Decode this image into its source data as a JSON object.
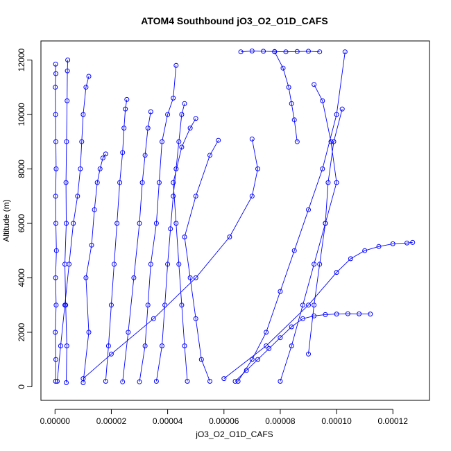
{
  "chart_data": {
    "type": "line",
    "title": "ATOM4 Southbound jO3_O2_O1D_CAFS",
    "xlabel": "jO3_O2_O1D_CAFS",
    "ylabel": "Altitude (m)",
    "xlim": [
      -5e-06,
      0.000133
    ],
    "ylim": [
      -500,
      12700
    ],
    "x_ticks": [
      0,
      2e-05,
      4e-05,
      6e-05,
      8e-05,
      0.0001,
      0.00012
    ],
    "x_tick_labels": [
      "0.00000",
      "0.00002",
      "0.00004",
      "0.00006",
      "0.00008",
      "0.00010",
      "0.00012"
    ],
    "y_ticks": [
      0,
      2000,
      4000,
      6000,
      8000,
      10000,
      12000
    ],
    "y_tick_labels": [
      "0",
      "2000",
      "4000",
      "6000",
      "8000",
      "10000",
      "12000"
    ],
    "grid": false,
    "legend": "none",
    "color": "#0000ff",
    "marker": "open-circle",
    "series": [
      {
        "x": [
          2e-07,
          3e-07,
          1e-07,
          4e-07,
          2e-07,
          5e-07,
          3e-07,
          2e-07,
          4e-07,
          3e-07,
          2e-07,
          1e-07,
          3e-07,
          2e-07
        ],
        "y": [
          200,
          1000,
          2000,
          3000,
          4000,
          5000,
          6000,
          7000,
          8000,
          9000,
          10000,
          11000,
          11500,
          11850
        ]
      },
      {
        "x": [
          4e-06,
          4.2e-06,
          3.8e-06,
          3.5e-06,
          4e-06,
          3.9e-06,
          4.1e-06,
          4.3e-06,
          4.4e-06,
          4.5e-06
        ],
        "y": [
          150,
          1500,
          3000,
          4500,
          6000,
          7500,
          9000,
          10500,
          11600,
          12000
        ]
      },
      {
        "x": [
          8e-07,
          2e-06,
          3.5e-06,
          5e-06,
          6.5e-06,
          8e-06,
          9e-06,
          9.5e-06,
          1e-05,
          1.1e-05,
          1.2e-05
        ],
        "y": [
          200,
          1500,
          3000,
          4500,
          6000,
          7000,
          8000,
          9000,
          10000,
          11000,
          11400
        ]
      },
      {
        "x": [
          1e-05,
          1.2e-05,
          1.1e-05,
          1.3e-05,
          1.4e-05,
          1.5e-05,
          1.6e-05,
          1.7e-05,
          1.8e-05
        ],
        "y": [
          150,
          2000,
          4000,
          5200,
          6500,
          7500,
          8000,
          8400,
          8550
        ]
      },
      {
        "x": [
          1.8e-05,
          1.9e-05,
          2e-05,
          2.1e-05,
          2.2e-05,
          2.3e-05,
          2.4e-05,
          2.45e-05,
          2.5e-05,
          2.55e-05
        ],
        "y": [
          200,
          1500,
          3000,
          4500,
          6000,
          7500,
          8600,
          9500,
          10200,
          10550
        ]
      },
      {
        "x": [
          2.4e-05,
          2.6e-05,
          2.8e-05,
          3e-05,
          3.1e-05,
          3.2e-05,
          3.3e-05,
          3.4e-05
        ],
        "y": [
          180,
          2000,
          4000,
          6000,
          7500,
          8500,
          9500,
          10100
        ]
      },
      {
        "x": [
          3e-05,
          3.2e-05,
          3.3e-05,
          3.4e-05,
          3.6e-05,
          3.7e-05,
          3.8e-05,
          4e-05,
          4.2e-05,
          4.3e-05
        ],
        "y": [
          180,
          1500,
          3000,
          4500,
          6000,
          7500,
          9000,
          10000,
          10600,
          11800
        ]
      },
      {
        "x": [
          3.6e-05,
          3.8e-05,
          3.9e-05,
          4e-05,
          4.1e-05,
          4.2e-05,
          4.3e-05,
          4.4e-05,
          4.5e-05,
          4.6e-05
        ],
        "y": [
          200,
          1500,
          3000,
          4500,
          5800,
          7000,
          8000,
          9000,
          10000,
          10400
        ]
      },
      {
        "x": [
          4.7e-05,
          4.6e-05,
          4.5e-05,
          4.4e-05,
          4.3e-05,
          4.2e-05,
          4.5e-05,
          4.8e-05,
          5e-05
        ],
        "y": [
          200,
          1500,
          3000,
          4500,
          6000,
          7500,
          8800,
          9500,
          9850
        ]
      },
      {
        "x": [
          5.5e-05,
          5.2e-05,
          5e-05,
          4.8e-05,
          4.6e-05,
          5e-05,
          5.5e-05,
          5.8e-05
        ],
        "y": [
          200,
          1000,
          2500,
          4000,
          5500,
          7000,
          8500,
          9050
        ]
      },
      {
        "x": [
          1e-05,
          2e-05,
          3.5e-05,
          5e-05,
          6.2e-05,
          7e-05,
          7.2e-05,
          7e-05
        ],
        "y": [
          300,
          1200,
          2500,
          4000,
          5500,
          7000,
          8000,
          9100
        ]
      },
      {
        "x": [
          6.5e-05,
          7e-05,
          7.5e-05,
          8e-05,
          8.5e-05,
          9e-05,
          9.5e-05,
          0.0001,
          0.000103
        ],
        "y": [
          200,
          1000,
          2000,
          3500,
          5000,
          6500,
          8000,
          10000,
          12300
        ]
      },
      {
        "x": [
          6.4e-05,
          6.8e-05,
          7.2e-05,
          7.6e-05,
          8e-05,
          8.4e-05,
          8.8e-05,
          9.2e-05,
          9.6e-05,
          0.0001,
          0.000104,
          0.000108,
          0.000112
        ],
        "y": [
          200,
          600,
          1000,
          1400,
          1800,
          2200,
          2500,
          2600,
          2650,
          2670,
          2680,
          2675,
          2670
        ]
      },
      {
        "x": [
          6e-05,
          7.5e-05,
          9e-05,
          0.0001,
          0.000105,
          0.00011,
          0.000115,
          0.00012,
          0.000125,
          0.000127
        ],
        "y": [
          300,
          1500,
          3000,
          4200,
          4700,
          5000,
          5150,
          5250,
          5280,
          5300
        ]
      },
      {
        "x": [
          8e-05,
          8.4e-05,
          8.8e-05,
          9.2e-05,
          9.6e-05,
          0.0001,
          9.8e-05,
          9.5e-05,
          9.2e-05
        ],
        "y": [
          200,
          1500,
          3000,
          4500,
          6000,
          7500,
          9000,
          10500,
          11100
        ]
      },
      {
        "x": [
          9e-05,
          9.2e-05,
          9.4e-05,
          9.6e-05,
          9.7e-05,
          9.9e-05,
          0.000102
        ],
        "y": [
          1200,
          3000,
          4500,
          6000,
          7500,
          9000,
          10200
        ]
      },
      {
        "x": [
          6.6e-05,
          7e-05,
          7.4e-05,
          7.8e-05,
          8.2e-05,
          8.6e-05,
          9e-05,
          9.4e-05
        ],
        "y": [
          12300,
          12330,
          12320,
          12310,
          12300,
          12310,
          12320,
          12300
        ]
      },
      {
        "x": [
          7.8e-05,
          8.1e-05,
          8.3e-05,
          8.4e-05,
          8.5e-05,
          8.6e-05
        ],
        "y": [
          12300,
          11700,
          11000,
          10400,
          9800,
          9000
        ]
      }
    ]
  }
}
